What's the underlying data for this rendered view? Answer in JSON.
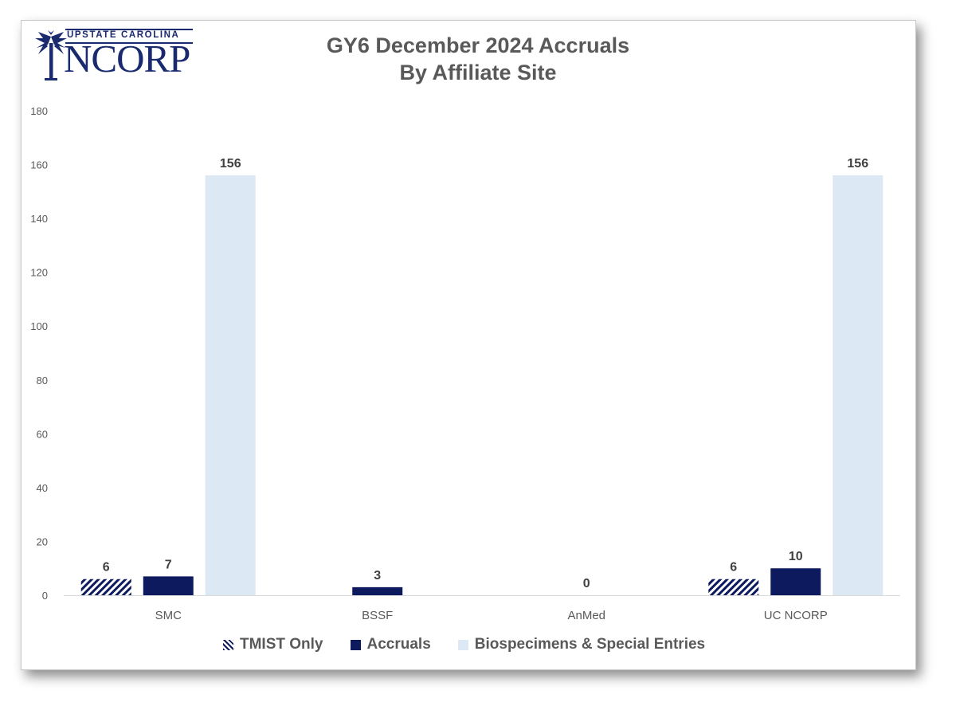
{
  "logo": {
    "top_text": "UPSTATE CAROLINA",
    "main_text": "NCORP"
  },
  "chart_data": {
    "type": "bar",
    "title_line1": "GY6 December 2024 Accruals",
    "title_line2": "By Affiliate Site",
    "categories": [
      "SMC",
      "BSSF",
      "AnMed",
      "UC NCORP"
    ],
    "ylim": [
      0,
      180
    ],
    "yticks": [
      0,
      20,
      40,
      60,
      80,
      100,
      120,
      140,
      160,
      180
    ],
    "grid": false,
    "legend_position": "bottom",
    "series": [
      {
        "name": "TMIST Only",
        "values": [
          6,
          null,
          null,
          6
        ],
        "color": "#0d1b5e",
        "pattern": "diagonal-stripes"
      },
      {
        "name": "Accruals",
        "values": [
          7,
          3,
          0,
          10
        ],
        "color": "#0d1b5e"
      },
      {
        "name": "Biospecimens & Special Entries",
        "values": [
          156,
          null,
          null,
          156
        ],
        "color": "#dde8f5"
      }
    ]
  }
}
